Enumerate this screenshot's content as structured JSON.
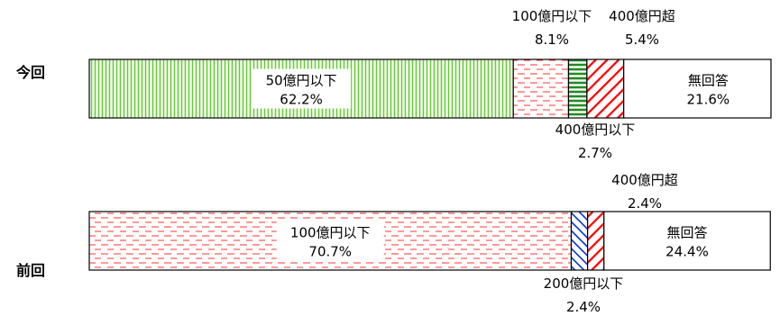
{
  "chart_data": {
    "type": "bar",
    "orientation": "horizontal-stacked-100",
    "rows": [
      {
        "label": "今回",
        "segments": [
          {
            "name": "50億円以下",
            "value": 62.2,
            "pattern": "vertical-lines",
            "color": "#66cc33"
          },
          {
            "name": "100億円以下",
            "value": 8.1,
            "pattern": "dashes",
            "color": "#ff3333"
          },
          {
            "name": "400億円以下",
            "value": 2.7,
            "pattern": "horizontal-lines",
            "color": "#228b22"
          },
          {
            "name": "400億円超",
            "value": 5.4,
            "pattern": "diagonal-lines",
            "color": "#ff0000"
          },
          {
            "name": "無回答",
            "value": 21.6,
            "pattern": "none",
            "color": "#ffffff"
          }
        ]
      },
      {
        "label": "前回",
        "segments": [
          {
            "name": "100億円以下",
            "value": 70.7,
            "pattern": "dashes",
            "color": "#ff3333"
          },
          {
            "name": "200億円以下",
            "value": 2.4,
            "pattern": "diagonal-lines-reverse",
            "color": "#0033cc"
          },
          {
            "name": "400億円超",
            "value": 2.4,
            "pattern": "diagonal-lines",
            "color": "#ff0000"
          },
          {
            "name": "無回答",
            "value": 24.4,
            "pattern": "none",
            "color": "#ffffff"
          }
        ]
      }
    ],
    "xlim": [
      0,
      100
    ],
    "grid": false,
    "legend": "none"
  }
}
